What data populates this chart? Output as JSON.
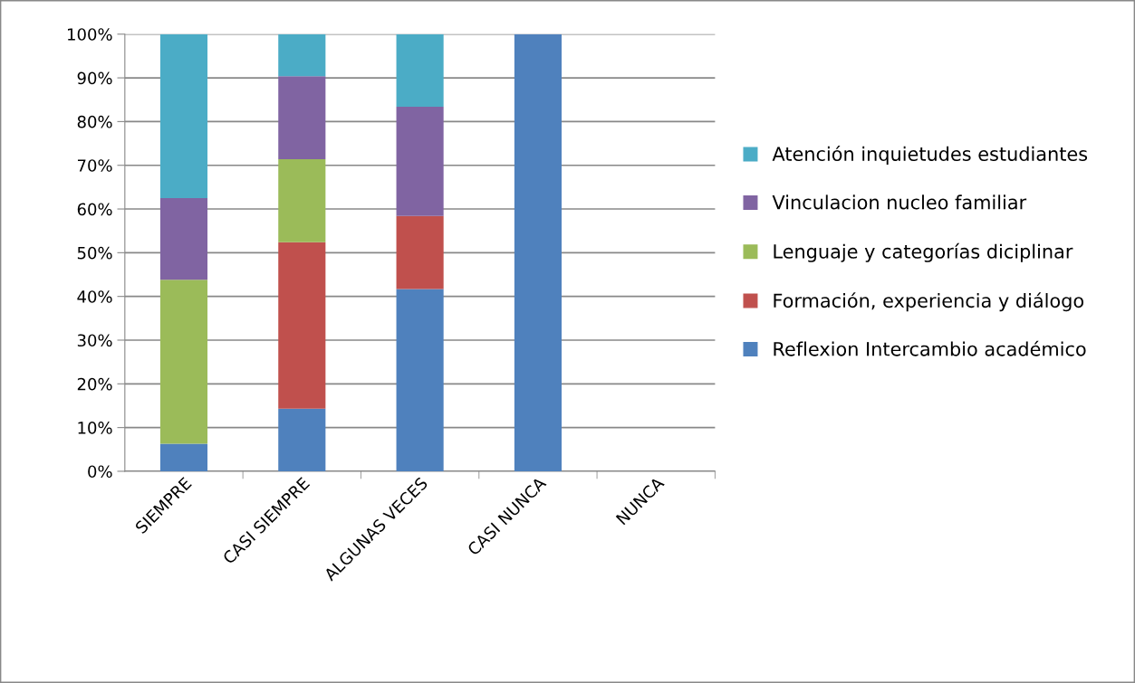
{
  "chart_data": {
    "type": "bar",
    "stacked": true,
    "categories": [
      "SIEMPRE",
      "CASI SIEMPRE",
      "ALGUNAS VECES",
      "CASI NUNCA",
      "NUNCA"
    ],
    "series": [
      {
        "name": "Reflexion Intercambio académico",
        "color": "#4f81bd",
        "values": [
          6.3,
          14.3,
          41.7,
          100,
          0
        ]
      },
      {
        "name": "Formación, experiencia y diálogo",
        "color": "#c0504d",
        "values": [
          0,
          38.1,
          16.7,
          0,
          0
        ]
      },
      {
        "name": "Lenguaje y categorías diciplinar",
        "color": "#9bbb59",
        "values": [
          37.5,
          19.0,
          0,
          0,
          0
        ]
      },
      {
        "name": "Vinculacion nucleo familiar",
        "color": "#8064a2",
        "values": [
          18.7,
          19.0,
          25.0,
          0,
          0
        ]
      },
      {
        "name": "Atención inquietudes estudiantes",
        "color": "#4bacc6",
        "values": [
          37.5,
          9.6,
          16.6,
          0,
          0
        ]
      }
    ],
    "ylim": [
      0,
      100
    ],
    "yticks": [
      {
        "value": 0,
        "label": "0%"
      },
      {
        "value": 10,
        "label": "10%"
      },
      {
        "value": 20,
        "label": "20%"
      },
      {
        "value": 30,
        "label": "30%"
      },
      {
        "value": 40,
        "label": "40%"
      },
      {
        "value": 50,
        "label": "50%"
      },
      {
        "value": 60,
        "label": "60%"
      },
      {
        "value": 70,
        "label": "70%"
      },
      {
        "value": 80,
        "label": "80%"
      },
      {
        "value": 90,
        "label": "90%"
      },
      {
        "value": 100,
        "label": "100%"
      }
    ],
    "grid": "y",
    "legend": "right"
  }
}
